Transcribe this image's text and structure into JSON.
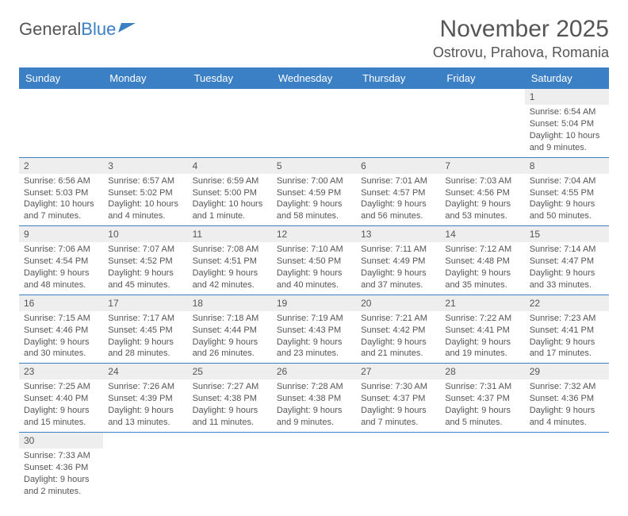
{
  "logo": {
    "text1": "General",
    "text2": "Blue"
  },
  "title": "November 2025",
  "location": "Ostrovu, Prahova, Romania",
  "colors": {
    "header_bg": "#3b7fc4",
    "header_fg": "#ffffff",
    "daynum_bg": "#eeeeee",
    "text": "#555555",
    "rule": "#3b7fc4"
  },
  "weekdays": [
    "Sunday",
    "Monday",
    "Tuesday",
    "Wednesday",
    "Thursday",
    "Friday",
    "Saturday"
  ],
  "weeks": [
    [
      null,
      null,
      null,
      null,
      null,
      null,
      {
        "n": "1",
        "sr": "6:54 AM",
        "ss": "5:04 PM",
        "dl": "10 hours and 9 minutes."
      }
    ],
    [
      {
        "n": "2",
        "sr": "6:56 AM",
        "ss": "5:03 PM",
        "dl": "10 hours and 7 minutes."
      },
      {
        "n": "3",
        "sr": "6:57 AM",
        "ss": "5:02 PM",
        "dl": "10 hours and 4 minutes."
      },
      {
        "n": "4",
        "sr": "6:59 AM",
        "ss": "5:00 PM",
        "dl": "10 hours and 1 minute."
      },
      {
        "n": "5",
        "sr": "7:00 AM",
        "ss": "4:59 PM",
        "dl": "9 hours and 58 minutes."
      },
      {
        "n": "6",
        "sr": "7:01 AM",
        "ss": "4:57 PM",
        "dl": "9 hours and 56 minutes."
      },
      {
        "n": "7",
        "sr": "7:03 AM",
        "ss": "4:56 PM",
        "dl": "9 hours and 53 minutes."
      },
      {
        "n": "8",
        "sr": "7:04 AM",
        "ss": "4:55 PM",
        "dl": "9 hours and 50 minutes."
      }
    ],
    [
      {
        "n": "9",
        "sr": "7:06 AM",
        "ss": "4:54 PM",
        "dl": "9 hours and 48 minutes."
      },
      {
        "n": "10",
        "sr": "7:07 AM",
        "ss": "4:52 PM",
        "dl": "9 hours and 45 minutes."
      },
      {
        "n": "11",
        "sr": "7:08 AM",
        "ss": "4:51 PM",
        "dl": "9 hours and 42 minutes."
      },
      {
        "n": "12",
        "sr": "7:10 AM",
        "ss": "4:50 PM",
        "dl": "9 hours and 40 minutes."
      },
      {
        "n": "13",
        "sr": "7:11 AM",
        "ss": "4:49 PM",
        "dl": "9 hours and 37 minutes."
      },
      {
        "n": "14",
        "sr": "7:12 AM",
        "ss": "4:48 PM",
        "dl": "9 hours and 35 minutes."
      },
      {
        "n": "15",
        "sr": "7:14 AM",
        "ss": "4:47 PM",
        "dl": "9 hours and 33 minutes."
      }
    ],
    [
      {
        "n": "16",
        "sr": "7:15 AM",
        "ss": "4:46 PM",
        "dl": "9 hours and 30 minutes."
      },
      {
        "n": "17",
        "sr": "7:17 AM",
        "ss": "4:45 PM",
        "dl": "9 hours and 28 minutes."
      },
      {
        "n": "18",
        "sr": "7:18 AM",
        "ss": "4:44 PM",
        "dl": "9 hours and 26 minutes."
      },
      {
        "n": "19",
        "sr": "7:19 AM",
        "ss": "4:43 PM",
        "dl": "9 hours and 23 minutes."
      },
      {
        "n": "20",
        "sr": "7:21 AM",
        "ss": "4:42 PM",
        "dl": "9 hours and 21 minutes."
      },
      {
        "n": "21",
        "sr": "7:22 AM",
        "ss": "4:41 PM",
        "dl": "9 hours and 19 minutes."
      },
      {
        "n": "22",
        "sr": "7:23 AM",
        "ss": "4:41 PM",
        "dl": "9 hours and 17 minutes."
      }
    ],
    [
      {
        "n": "23",
        "sr": "7:25 AM",
        "ss": "4:40 PM",
        "dl": "9 hours and 15 minutes."
      },
      {
        "n": "24",
        "sr": "7:26 AM",
        "ss": "4:39 PM",
        "dl": "9 hours and 13 minutes."
      },
      {
        "n": "25",
        "sr": "7:27 AM",
        "ss": "4:38 PM",
        "dl": "9 hours and 11 minutes."
      },
      {
        "n": "26",
        "sr": "7:28 AM",
        "ss": "4:38 PM",
        "dl": "9 hours and 9 minutes."
      },
      {
        "n": "27",
        "sr": "7:30 AM",
        "ss": "4:37 PM",
        "dl": "9 hours and 7 minutes."
      },
      {
        "n": "28",
        "sr": "7:31 AM",
        "ss": "4:37 PM",
        "dl": "9 hours and 5 minutes."
      },
      {
        "n": "29",
        "sr": "7:32 AM",
        "ss": "4:36 PM",
        "dl": "9 hours and 4 minutes."
      }
    ],
    [
      {
        "n": "30",
        "sr": "7:33 AM",
        "ss": "4:36 PM",
        "dl": "9 hours and 2 minutes."
      },
      null,
      null,
      null,
      null,
      null,
      null
    ]
  ],
  "labels": {
    "sunrise": "Sunrise:",
    "sunset": "Sunset:",
    "daylight": "Daylight:"
  }
}
